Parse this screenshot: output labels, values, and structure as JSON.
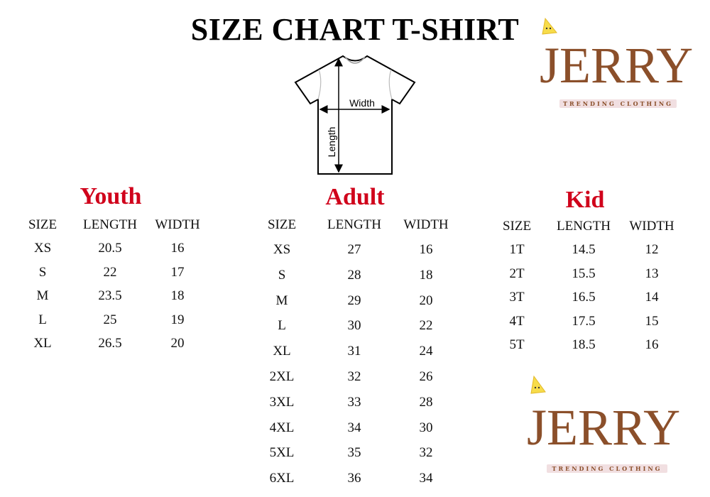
{
  "title": "SIZE CHART T-SHIRT",
  "diagram": {
    "width_label": "Width",
    "length_label": "Length"
  },
  "logo": {
    "name": "JERRY",
    "tagline": "TRENDING CLOTHING",
    "color": "#8b4f2a",
    "icon": "cheese-mascot-icon"
  },
  "accent_color": "#d0021b",
  "tables": [
    {
      "title": "Youth",
      "headers": [
        "SIZE",
        "LENGTH",
        "WIDTH"
      ],
      "rows": [
        [
          "XS",
          "20.5",
          "16"
        ],
        [
          "S",
          "22",
          "17"
        ],
        [
          "M",
          "23.5",
          "18"
        ],
        [
          "L",
          "25",
          "19"
        ],
        [
          "XL",
          "26.5",
          "20"
        ]
      ]
    },
    {
      "title": "Adult",
      "headers": [
        "SIZE",
        "LENGTH",
        "WIDTH"
      ],
      "rows": [
        [
          "XS",
          "27",
          "16"
        ],
        [
          "S",
          "28",
          "18"
        ],
        [
          "M",
          "29",
          "20"
        ],
        [
          "L",
          "30",
          "22"
        ],
        [
          "XL",
          "31",
          "24"
        ],
        [
          "2XL",
          "32",
          "26"
        ],
        [
          "3XL",
          "33",
          "28"
        ],
        [
          "4XL",
          "34",
          "30"
        ],
        [
          "5XL",
          "35",
          "32"
        ],
        [
          "6XL",
          "36",
          "34"
        ]
      ]
    },
    {
      "title": "Kid",
      "headers": [
        "SIZE",
        "LENGTH",
        "WIDTH"
      ],
      "rows": [
        [
          "1T",
          "14.5",
          "12"
        ],
        [
          "2T",
          "15.5",
          "13"
        ],
        [
          "3T",
          "16.5",
          "14"
        ],
        [
          "4T",
          "17.5",
          "15"
        ],
        [
          "5T",
          "18.5",
          "16"
        ]
      ]
    }
  ]
}
